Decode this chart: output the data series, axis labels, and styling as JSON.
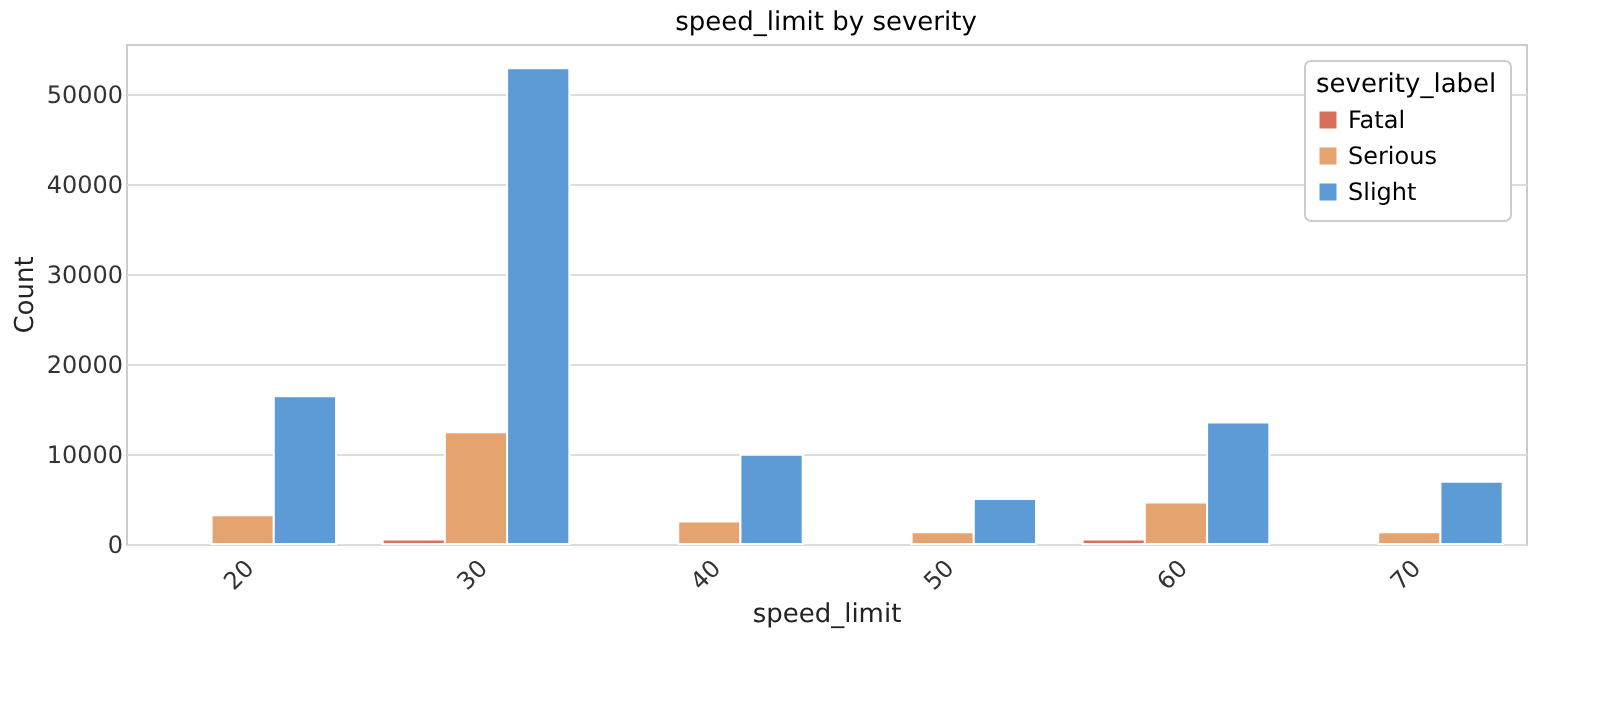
{
  "chart_data": {
    "type": "bar",
    "title": "speed_limit by severity",
    "xlabel": "speed_limit",
    "ylabel": "Count",
    "legend_title": "severity_label",
    "categories": [
      "20",
      "30",
      "40",
      "50",
      "60",
      "70"
    ],
    "series": [
      {
        "name": "Fatal",
        "color": "#d9705a",
        "values": [
          null,
          500,
          null,
          null,
          500,
          null
        ]
      },
      {
        "name": "Serious",
        "color": "#e5a46f",
        "values": [
          3200,
          12400,
          2500,
          1300,
          4600,
          1300
        ]
      },
      {
        "name": "Slight",
        "color": "#5d9bd6",
        "values": [
          16400,
          52800,
          9900,
          5000,
          13500,
          6900
        ]
      }
    ],
    "ylim": [
      0,
      55500
    ],
    "yticks": [
      0,
      10000,
      20000,
      30000,
      40000,
      50000
    ],
    "grid": "y",
    "legend": "top right"
  }
}
